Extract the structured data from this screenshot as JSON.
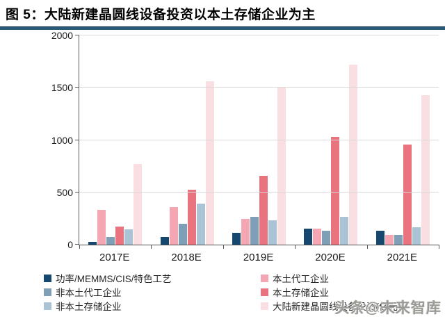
{
  "title": "图 5：大陆新建晶圆线设备投资以本土存储企业为主",
  "watermark": "头条@未来智库",
  "colors": {
    "title_rule": "#2a5a78",
    "gridline": "#d9d9d9",
    "axis": "#595959"
  },
  "chart_data": {
    "type": "bar",
    "title": "图 5：大陆新建晶圆线设备投资以本土存储企业为主",
    "categories": [
      "2017E",
      "2018E",
      "2019E",
      "2020E",
      "2021E"
    ],
    "series": [
      {
        "name": "功率/MEMMS/CIS/特色工艺",
        "color": "#16486f",
        "values": [
          30,
          70,
          115,
          150,
          135
        ]
      },
      {
        "name": "本土代工企业",
        "color": "#f4a7b3",
        "values": [
          330,
          360,
          245,
          150,
          95
        ]
      },
      {
        "name": "非本土代工企业",
        "color": "#7f9fb6",
        "values": [
          75,
          200,
          265,
          130,
          90
        ]
      },
      {
        "name": "本土存储企业",
        "color": "#e9737f",
        "values": [
          170,
          525,
          655,
          1030,
          955
        ]
      },
      {
        "name": "非本土存储企业",
        "color": "#aac4d5",
        "values": [
          145,
          390,
          235,
          265,
          165
        ]
      },
      {
        "name": "大陆新建晶圆线设备投资(亿元)",
        "color": "#fadfe2",
        "values": [
          770,
          1560,
          1500,
          1720,
          1430
        ]
      }
    ],
    "ylim": [
      0,
      2000
    ],
    "yticks": [
      0,
      500,
      1000,
      1500,
      2000
    ],
    "xlabel": "",
    "ylabel": "",
    "grid": true,
    "legend_position": "bottom-two-columns"
  }
}
